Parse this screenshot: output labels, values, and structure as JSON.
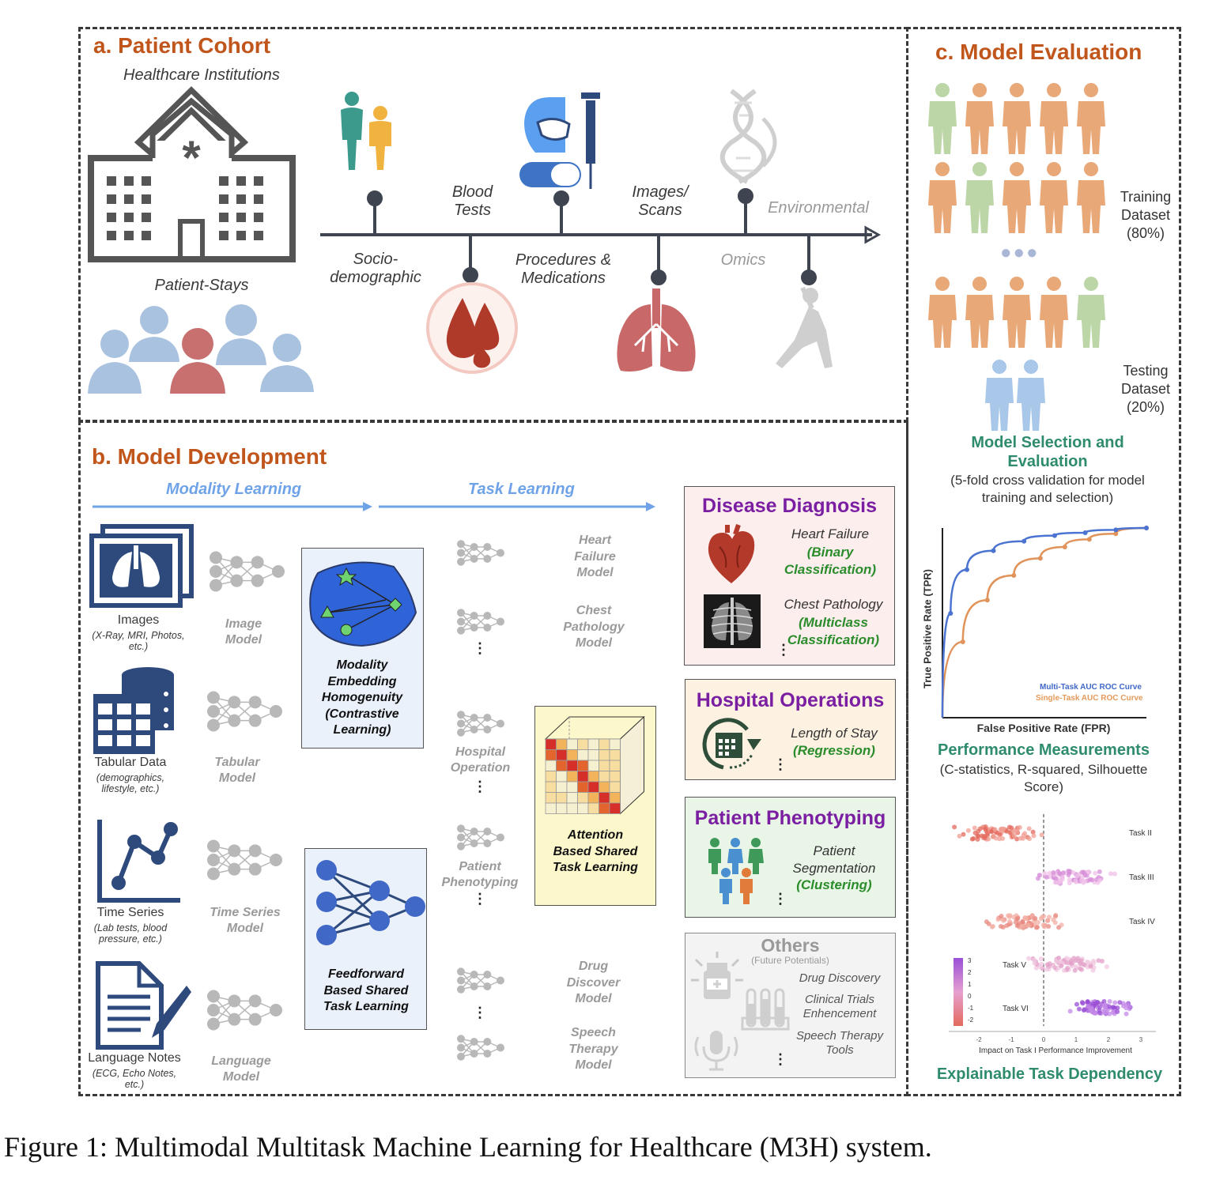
{
  "caption": "Figure 1: Multimodal Multitask Machine Learning for Healthcare (M3H) system.",
  "colors": {
    "section_title": "#c0561b",
    "arrow_blue": "#6fa3e8",
    "dark_blue": "#2e4a7d",
    "peach": "#e8a878",
    "sage": "#bdd6a8",
    "light_blue": "#a9c7e8"
  },
  "cohort": {
    "title": "a. Patient Cohort",
    "institutions": "Healthcare Institutions",
    "patient_stays": "Patient-Stays",
    "timeline": {
      "socio": "Socio-\ndemographic",
      "blood": "Blood\nTests",
      "procedures": "Procedures &\nMedications",
      "images": "Images/\nScans",
      "omics": "Omics",
      "environmental": "Environmental"
    }
  },
  "evaluation": {
    "title": "c. Model Evaluation",
    "training": "Training\nDataset\n(80%)",
    "testing": "Testing\nDataset\n(20%)",
    "selection_title": "Model Selection and\nEvaluation",
    "selection_sub": "(5-fold cross validation for model\ntraining and selection)",
    "roc_ylabel": "True Positive Rate (TPR)",
    "roc_xlabel": "False Positive Rate (FPR)",
    "roc_legend_multi": "Multi-Task AUC ROC Curve",
    "roc_legend_single": "Single-Task AUC ROC Curve",
    "perf_title": "Performance Measurements",
    "perf_sub": "(C-statistics, R-squared, Silhouette\nScore)",
    "shap_tasks": [
      "Task II",
      "Task III",
      "Task IV",
      "Task V",
      "Task VI"
    ],
    "shap_xlabel": "Impact on Task I Performance Improvement",
    "shap_xticks": [
      "-2",
      "-1",
      "0",
      "1",
      "2",
      "3"
    ],
    "shap_colorbar": [
      "3",
      "2",
      "1",
      "0",
      "-1",
      "-2"
    ],
    "explain_title": "Explainable Task Dependency"
  },
  "development": {
    "title": "b. Model Development",
    "modality_learning": "Modality Learning",
    "task_learning": "Task Learning",
    "inputs": [
      {
        "name": "Images",
        "sub": "(X-Ray, MRI, Photos,\netc.)",
        "model": "Image\nModel"
      },
      {
        "name": "Tabular Data",
        "sub": "(demographics,\nlifestyle, etc.)",
        "model": "Tabular\nModel"
      },
      {
        "name": "Time Series",
        "sub": "(Lab tests, blood\npressure, etc.)",
        "model": "Time Series\nModel"
      },
      {
        "name": "Language Notes",
        "sub": "(ECG, Echo Notes,\netc.)",
        "model": "Language\nModel"
      }
    ],
    "modality_box": "Modality\nEmbedding\nHomogenuity\n(Contrastive\nLearning)",
    "feedforward_box": "Feedforward\nBased Shared\nTask Learning",
    "attention_box": "Attention\nBased Shared\nTask Learning",
    "task_groups": [
      "Hospital\nOperation",
      "Patient\nPhenotyping"
    ],
    "task_models": [
      "Heart\nFailure\nModel",
      "Chest\nPathology\nModel",
      "Drug\nDiscover\nModel",
      "Speech\nTherapy\nModel"
    ],
    "disease": {
      "title": "Disease Diagnosis",
      "item1": "Heart Failure",
      "item1_type": "(Binary\nClassification)",
      "item2": "Chest Pathology",
      "item2_type": "(Multiclass\nClassification)"
    },
    "hospital": {
      "title": "Hospital Operations",
      "item": "Length of Stay",
      "item_type": "(Regression)"
    },
    "phenotyping": {
      "title": "Patient Phenotyping",
      "item": "Patient\nSegmentation",
      "item_type": "(Clustering)"
    },
    "others": {
      "title": "Others",
      "sub": "(Future Potentials)",
      "items": [
        "Drug Discovery",
        "Clinical Trials\nEnhencement",
        "Speech Therapy\nTools"
      ]
    },
    "ellipsis": "⋮"
  }
}
